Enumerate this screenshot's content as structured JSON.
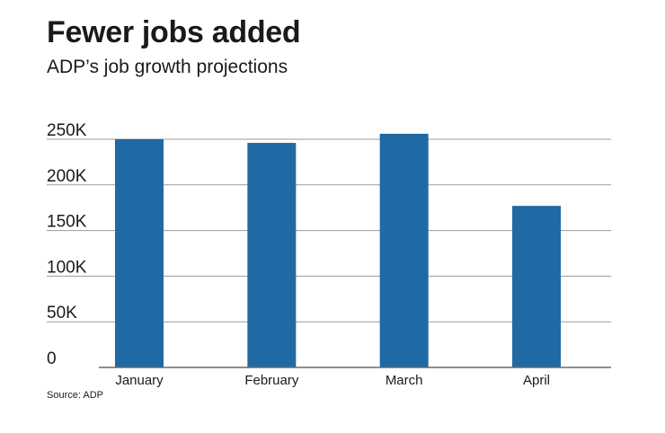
{
  "header": {
    "title": "Fewer jobs added",
    "subtitle": "ADP’s job growth projections"
  },
  "footer": {
    "source": "Source: ADP"
  },
  "colors": {
    "bar": "#1f6aa5",
    "grid": "#9a9a9a",
    "axis": "#6a6a6a"
  },
  "chart_data": {
    "type": "bar",
    "title": "",
    "xlabel": "",
    "ylabel": "",
    "categories": [
      "January",
      "February",
      "March",
      "April"
    ],
    "values": [
      250000,
      246000,
      256000,
      177000
    ],
    "ylim": [
      0,
      250000
    ],
    "yticks": [
      0,
      50000,
      100000,
      150000,
      200000,
      250000
    ],
    "ytick_labels": [
      "0",
      "50K",
      "100K",
      "150K",
      "200K",
      "250K"
    ],
    "grid": true,
    "legend": "none"
  }
}
